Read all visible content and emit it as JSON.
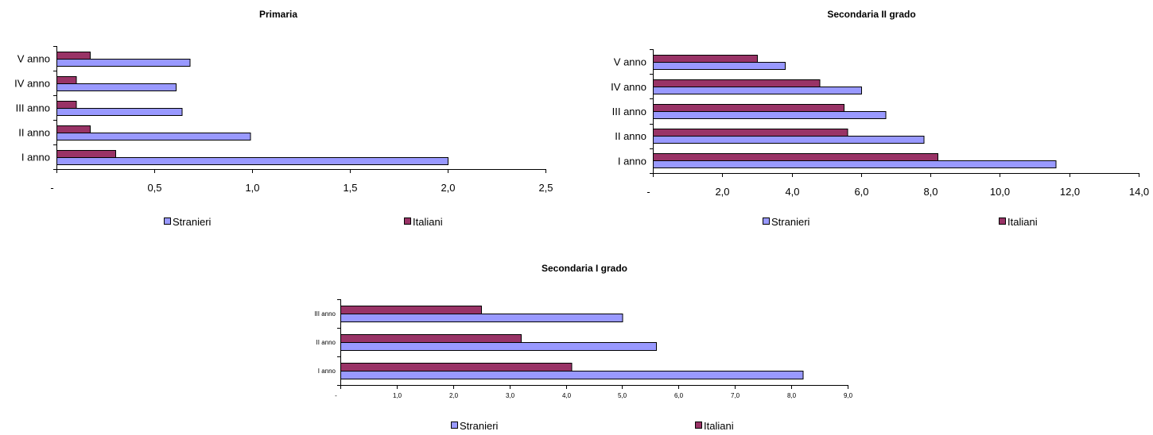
{
  "colors": {
    "stranieri": "#9999FF",
    "italiani": "#993366"
  },
  "chart_data": [
    {
      "type": "bar",
      "orientation": "horizontal",
      "title": "Primaria",
      "categories": [
        "I anno",
        "II anno",
        "III anno",
        "IV anno",
        "V anno"
      ],
      "series": [
        {
          "name": "Stranieri",
          "values": [
            2.0,
            0.99,
            0.64,
            0.61,
            0.68
          ]
        },
        {
          "name": "Italiani",
          "values": [
            0.3,
            0.17,
            0.1,
            0.1,
            0.17
          ]
        }
      ],
      "xlim": [
        0,
        2.5
      ],
      "xticks": [
        "-",
        "0,5",
        "1,0",
        "1,5",
        "2,0",
        "2,5"
      ],
      "legend": "bottom"
    },
    {
      "type": "bar",
      "orientation": "horizontal",
      "title": "Secondaria II grado",
      "categories": [
        "I anno",
        "II anno",
        "III anno",
        "IV anno",
        "V anno"
      ],
      "series": [
        {
          "name": "Stranieri",
          "values": [
            11.6,
            7.8,
            6.7,
            6.0,
            3.8
          ]
        },
        {
          "name": "Italiani",
          "values": [
            8.2,
            5.6,
            5.5,
            4.8,
            3.0
          ]
        }
      ],
      "xlim": [
        0,
        14
      ],
      "xticks": [
        "-",
        "2,0",
        "4,0",
        "6,0",
        "8,0",
        "10,0",
        "12,0",
        "14,0"
      ],
      "legend": "bottom"
    },
    {
      "type": "bar",
      "orientation": "horizontal",
      "title": "Secondaria I grado",
      "categories": [
        "I anno",
        "II anno",
        "III anno"
      ],
      "series": [
        {
          "name": "Stranieri",
          "values": [
            8.2,
            5.6,
            5.0
          ]
        },
        {
          "name": "Italiani",
          "values": [
            4.1,
            3.2,
            2.5
          ]
        }
      ],
      "xlim": [
        0,
        9
      ],
      "xticks": [
        "-",
        "1,0",
        "2,0",
        "3,0",
        "4,0",
        "5,0",
        "6,0",
        "7,0",
        "8,0",
        "9,0"
      ],
      "legend": "bottom"
    }
  ]
}
